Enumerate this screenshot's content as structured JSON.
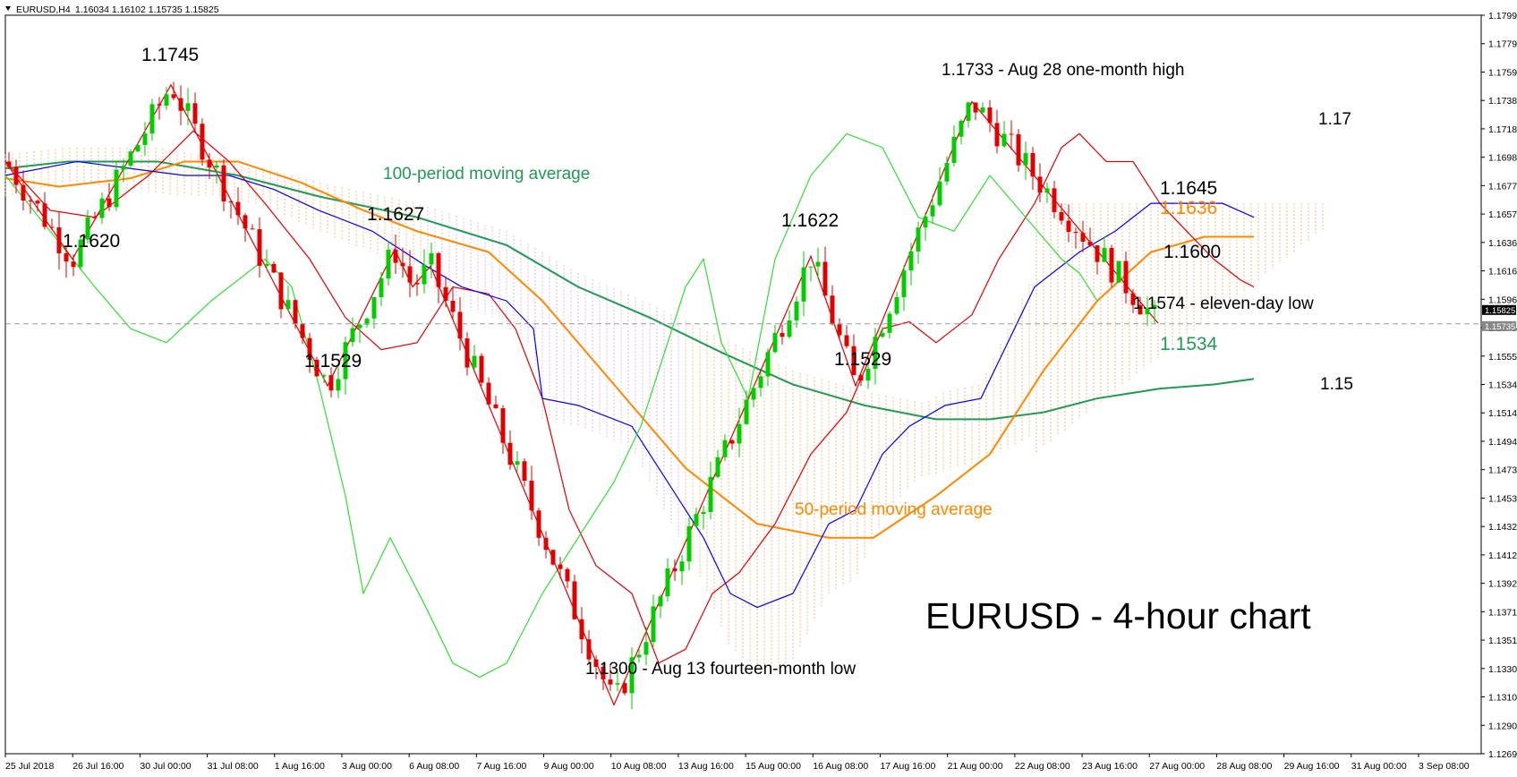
{
  "header": {
    "symbol": "EURUSD,H4",
    "ohlc": "1.16034 1.16102 1.15735 1.15825"
  },
  "colors": {
    "up": "#00cc00",
    "down": "#e00000",
    "tenkan": "#e00000",
    "kijun": "#0000ff",
    "chikou": "#33dd33",
    "ma50": "#ff8800",
    "ma100": "#229955",
    "cloud_bull": "#f4a460",
    "cloud_bear": "#d8a8e0",
    "annotation": "#000000"
  },
  "chart_data": {
    "type": "candlestick",
    "instrument": "EURUSD",
    "timeframe": "H4",
    "title": "EURUSD - 4-hour chart",
    "ylim": [
      1.1265,
      1.1795
    ],
    "y_ticks": [
      "1.17995",
      "1.17795",
      "1.17590",
      "1.17385",
      "1.17180",
      "1.16980",
      "1.16775",
      "1.16570",
      "1.16365",
      "1.16160",
      "1.15960",
      "1.15755",
      "1.15555",
      "1.15345",
      "1.15140",
      "1.14940",
      "1.14735",
      "1.14530",
      "1.14325",
      "1.14125",
      "1.13920",
      "1.13715",
      "1.13510",
      "1.13305",
      "1.13100",
      "1.12900",
      "1.12695"
    ],
    "x_ticks": [
      "25 Jul 2018",
      "26 Jul 16:00",
      "30 Jul 00:00",
      "31 Jul 08:00",
      "1 Aug 16:00",
      "3 Aug 00:00",
      "6 Aug 08:00",
      "7 Aug 16:00",
      "9 Aug 00:00",
      "10 Aug 08:00",
      "13 Aug 16:00",
      "15 Aug 00:00",
      "16 Aug 08:00",
      "17 Aug 16:00",
      "21 Aug 00:00",
      "22 Aug 08:00",
      "23 Aug 16:00",
      "27 Aug 00:00",
      "28 Aug 08:00",
      "29 Aug 16:00",
      "31 Aug 00:00",
      "3 Sep 08:00"
    ],
    "price_tags": [
      {
        "value": "1.15825",
        "level": 1.15825
      },
      {
        "value": "1.15735",
        "level": 1.15735
      }
    ],
    "current_price": 1.15735,
    "series": [
      {
        "name": "100-period moving average",
        "key": "ma100",
        "values": [
          [
            0,
            1.1685
          ],
          [
            70,
            1.169
          ],
          [
            170,
            1.169
          ],
          [
            260,
            1.168
          ],
          [
            350,
            1.1665
          ],
          [
            460,
            1.165
          ],
          [
            560,
            1.163
          ],
          [
            640,
            1.16
          ],
          [
            720,
            1.1578
          ],
          [
            800,
            1.1553
          ],
          [
            880,
            1.153
          ],
          [
            960,
            1.1515
          ],
          [
            1040,
            1.1505
          ],
          [
            1100,
            1.1505
          ],
          [
            1160,
            1.151
          ],
          [
            1220,
            1.152
          ],
          [
            1290,
            1.1527
          ],
          [
            1350,
            1.153
          ],
          [
            1395,
            1.1534
          ]
        ]
      },
      {
        "name": "50-period moving average",
        "key": "ma50",
        "values": [
          [
            0,
            1.1678
          ],
          [
            60,
            1.1672
          ],
          [
            140,
            1.1678
          ],
          [
            200,
            1.169
          ],
          [
            260,
            1.169
          ],
          [
            330,
            1.1675
          ],
          [
            400,
            1.1655
          ],
          [
            460,
            1.164
          ],
          [
            540,
            1.1625
          ],
          [
            600,
            1.159
          ],
          [
            680,
            1.153
          ],
          [
            760,
            1.147
          ],
          [
            840,
            1.143
          ],
          [
            920,
            1.142
          ],
          [
            970,
            1.142
          ],
          [
            1040,
            1.145
          ],
          [
            1100,
            1.148
          ],
          [
            1160,
            1.154
          ],
          [
            1220,
            1.159
          ],
          [
            1280,
            1.1625
          ],
          [
            1340,
            1.1636
          ],
          [
            1395,
            1.1636
          ]
        ]
      },
      {
        "name": "",
        "key": "tenkan",
        "values": [
          [
            0,
            1.169
          ],
          [
            50,
            1.1655
          ],
          [
            100,
            1.165
          ],
          [
            160,
            1.168
          ],
          [
            210,
            1.1712
          ],
          [
            250,
            1.169
          ],
          [
            290,
            1.166
          ],
          [
            340,
            1.162
          ],
          [
            380,
            1.1578
          ],
          [
            420,
            1.1555
          ],
          [
            460,
            1.156
          ],
          [
            500,
            1.16
          ],
          [
            540,
            1.1595
          ],
          [
            570,
            1.157
          ],
          [
            600,
            1.152
          ],
          [
            630,
            1.144
          ],
          [
            660,
            1.14
          ],
          [
            700,
            1.138
          ],
          [
            730,
            1.133
          ],
          [
            760,
            1.134
          ],
          [
            790,
            1.138
          ],
          [
            820,
            1.1395
          ],
          [
            860,
            1.143
          ],
          [
            900,
            1.148
          ],
          [
            940,
            1.151
          ],
          [
            980,
            1.157
          ],
          [
            1010,
            1.1575
          ],
          [
            1040,
            1.156
          ],
          [
            1080,
            1.158
          ],
          [
            1110,
            1.162
          ],
          [
            1150,
            1.166
          ],
          [
            1180,
            1.17
          ],
          [
            1200,
            1.171
          ],
          [
            1230,
            1.169
          ],
          [
            1260,
            1.169
          ],
          [
            1290,
            1.166
          ],
          [
            1320,
            1.164
          ],
          [
            1350,
            1.162
          ],
          [
            1380,
            1.1605
          ],
          [
            1395,
            1.16
          ]
        ]
      },
      {
        "name": "",
        "key": "kijun",
        "values": [
          [
            0,
            1.168
          ],
          [
            80,
            1.169
          ],
          [
            140,
            1.1685
          ],
          [
            200,
            1.168
          ],
          [
            250,
            1.168
          ],
          [
            300,
            1.167
          ],
          [
            350,
            1.1655
          ],
          [
            410,
            1.164
          ],
          [
            470,
            1.1615
          ],
          [
            510,
            1.16
          ],
          [
            560,
            1.159
          ],
          [
            590,
            1.157
          ],
          [
            600,
            1.152
          ],
          [
            640,
            1.1515
          ],
          [
            700,
            1.15
          ],
          [
            740,
            1.146
          ],
          [
            780,
            1.142
          ],
          [
            810,
            1.138
          ],
          [
            840,
            1.137
          ],
          [
            880,
            1.138
          ],
          [
            920,
            1.143
          ],
          [
            950,
            1.144
          ],
          [
            980,
            1.148
          ],
          [
            1010,
            1.15
          ],
          [
            1050,
            1.1515
          ],
          [
            1090,
            1.152
          ],
          [
            1120,
            1.156
          ],
          [
            1150,
            1.16
          ],
          [
            1200,
            1.1625
          ],
          [
            1240,
            1.164
          ],
          [
            1280,
            1.166
          ],
          [
            1320,
            1.166
          ],
          [
            1360,
            1.166
          ],
          [
            1395,
            1.165
          ]
        ]
      },
      {
        "name": "",
        "key": "chikou",
        "values": [
          [
            0,
            1.168
          ],
          [
            50,
            1.164
          ],
          [
            100,
            1.16
          ],
          [
            140,
            1.157
          ],
          [
            180,
            1.156
          ],
          [
            230,
            1.159
          ],
          [
            290,
            1.162
          ],
          [
            320,
            1.16
          ],
          [
            350,
            1.153
          ],
          [
            380,
            1.145
          ],
          [
            400,
            1.138
          ],
          [
            430,
            1.142
          ],
          [
            470,
            1.137
          ],
          [
            500,
            1.133
          ],
          [
            530,
            1.132
          ],
          [
            560,
            1.133
          ],
          [
            600,
            1.138
          ],
          [
            640,
            1.142
          ],
          [
            680,
            1.146
          ],
          [
            710,
            1.15
          ],
          [
            740,
            1.156
          ],
          [
            760,
            1.16
          ],
          [
            780,
            1.162
          ],
          [
            800,
            1.156
          ],
          [
            830,
            1.152
          ],
          [
            860,
            1.162
          ],
          [
            900,
            1.168
          ],
          [
            940,
            1.171
          ],
          [
            980,
            1.17
          ],
          [
            1020,
            1.165
          ],
          [
            1060,
            1.164
          ],
          [
            1100,
            1.168
          ],
          [
            1140,
            1.165
          ],
          [
            1180,
            1.162
          ],
          [
            1200,
            1.161
          ],
          [
            1220,
            1.159
          ]
        ]
      }
    ],
    "annotations": [
      {
        "text": "1.1745",
        "role": "swing-high",
        "value": 1.1745
      },
      {
        "text": "1.1620",
        "role": "swing-low",
        "value": 1.162
      },
      {
        "text": "100-period moving average",
        "role": "series-label"
      },
      {
        "text": "1.1627",
        "role": "swing-high",
        "value": 1.1627
      },
      {
        "text": "1.1529",
        "role": "swing-low",
        "value": 1.1529
      },
      {
        "text": "1.1622",
        "role": "swing-high",
        "value": 1.1622
      },
      {
        "text": "1.1529",
        "role": "swing-low",
        "value": 1.1529
      },
      {
        "text": "1.1733 - Aug 28 one-month high",
        "role": "swing-high",
        "value": 1.1733
      },
      {
        "text": "1.1645",
        "role": "level",
        "value": 1.1645
      },
      {
        "text": "1.1636",
        "role": "level",
        "value": 1.1636
      },
      {
        "text": "1.1600",
        "role": "level",
        "value": 1.16
      },
      {
        "text": "1.1574 - eleven-day low",
        "role": "swing-low",
        "value": 1.1574
      },
      {
        "text": "1.1534",
        "role": "level",
        "value": 1.1534
      },
      {
        "text": "50-period moving average",
        "role": "series-label"
      },
      {
        "text": "1.1300 - Aug 13 fourteen-month low",
        "role": "swing-low",
        "value": 1.13
      },
      {
        "text": "1.17",
        "role": "round-level",
        "value": 1.17
      },
      {
        "text": "1.15",
        "role": "round-level",
        "value": 1.15
      },
      {
        "text": "EURUSD - 4-hour chart",
        "role": "title"
      }
    ]
  }
}
